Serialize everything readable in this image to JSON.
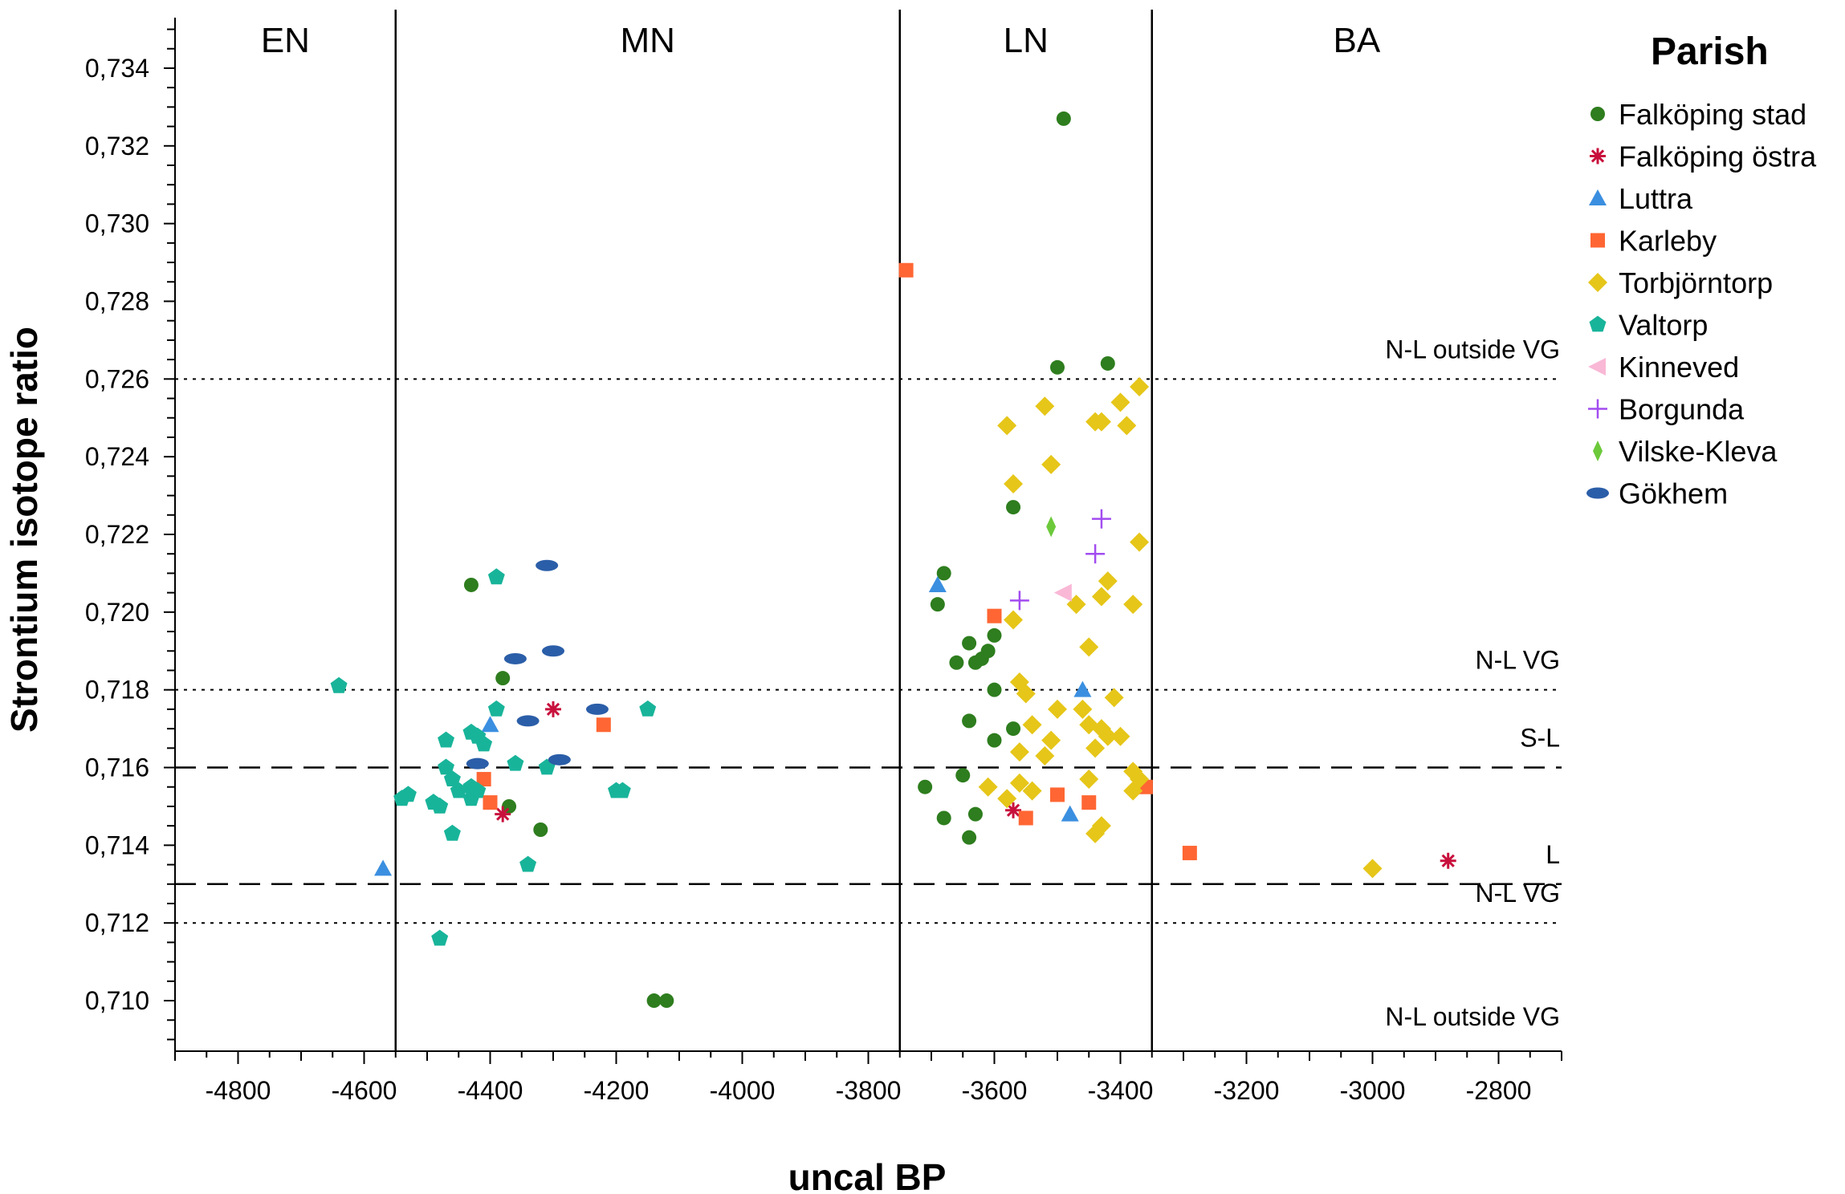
{
  "chart_data": {
    "type": "scatter",
    "xlabel": "uncal BP",
    "ylabel": "Strontium isotope ratio",
    "xlim": [
      -4900,
      -2700
    ],
    "ylim": [
      0.7087,
      0.7353
    ],
    "x_ticks": [
      -4800,
      -4600,
      -4400,
      -4200,
      -4000,
      -3800,
      -3600,
      -3400,
      -3200,
      -3000,
      -2800
    ],
    "y_ticks": [
      0.71,
      0.712,
      0.714,
      0.716,
      0.718,
      0.72,
      0.722,
      0.724,
      0.726,
      0.728,
      0.73,
      0.732,
      0.734
    ],
    "x_tick_labels": [
      "-4800",
      "-4600",
      "-4400",
      "-4200",
      "-4000",
      "-3800",
      "-3600",
      "-3400",
      "-3200",
      "-3000",
      "-2800"
    ],
    "y_tick_labels": [
      "0,710",
      "0,712",
      "0,714",
      "0,716",
      "0,718",
      "0,720",
      "0,722",
      "0,724",
      "0,726",
      "0,728",
      "0,730",
      "0,732",
      "0,734"
    ],
    "periods": [
      {
        "label": "EN",
        "from": -4900,
        "to": -4550
      },
      {
        "label": "MN",
        "from": -4550,
        "to": -3750
      },
      {
        "label": "LN",
        "from": -3750,
        "to": -3350
      },
      {
        "label": "BA",
        "from": -3350,
        "to": -2700
      }
    ],
    "period_boundaries": [
      -4550,
      -3750,
      -3350
    ],
    "reference_lines": [
      {
        "y": 0.726,
        "style": "dotted",
        "label": "N-L outside VG",
        "label_pos": "above"
      },
      {
        "y": 0.718,
        "style": "dotted",
        "label": "N-L VG",
        "label_pos": "above"
      },
      {
        "y": 0.716,
        "style": "dashed",
        "label": "S-L",
        "label_pos": "above"
      },
      {
        "y": 0.713,
        "style": "dashed",
        "label": "L",
        "label_pos": "above"
      },
      {
        "y": 0.712,
        "style": "dotted",
        "label": "N-L VG",
        "label_pos": "above"
      },
      {
        "y": 0.712,
        "style": "none",
        "label": "N-L outside VG",
        "label_pos": "below"
      }
    ],
    "legend": {
      "title": "Parish",
      "position": "right"
    },
    "series": [
      {
        "name": "Falköping stad",
        "marker": "circle",
        "color": "#2e7d1e",
        "points": [
          [
            -4430,
            0.7207
          ],
          [
            -4380,
            0.7183
          ],
          [
            -4370,
            0.715
          ],
          [
            -4320,
            0.7144
          ],
          [
            -4140,
            0.71
          ],
          [
            -4120,
            0.71
          ],
          [
            -3490,
            0.7327
          ],
          [
            -3500,
            0.7263
          ],
          [
            -3420,
            0.7264
          ],
          [
            -3570,
            0.7227
          ],
          [
            -3680,
            0.721
          ],
          [
            -3690,
            0.7202
          ],
          [
            -3640,
            0.7192
          ],
          [
            -3600,
            0.7194
          ],
          [
            -3610,
            0.719
          ],
          [
            -3620,
            0.7188
          ],
          [
            -3660,
            0.7187
          ],
          [
            -3630,
            0.7187
          ],
          [
            -3600,
            0.718
          ],
          [
            -3640,
            0.7172
          ],
          [
            -3570,
            0.717
          ],
          [
            -3600,
            0.7167
          ],
          [
            -3650,
            0.7158
          ],
          [
            -3710,
            0.7155
          ],
          [
            -3680,
            0.7147
          ],
          [
            -3630,
            0.7148
          ],
          [
            -3640,
            0.7142
          ]
        ]
      },
      {
        "name": "Falköping östra",
        "marker": "asterisk",
        "color": "#c8103c",
        "points": [
          [
            -4300,
            0.7175
          ],
          [
            -4380,
            0.7148
          ],
          [
            -3570,
            0.7149
          ],
          [
            -2880,
            0.7136
          ]
        ]
      },
      {
        "name": "Luttra",
        "marker": "triangle-up",
        "color": "#3b8fe0",
        "points": [
          [
            -4570,
            0.7134
          ],
          [
            -4400,
            0.7171
          ],
          [
            -3690,
            0.7207
          ],
          [
            -3460,
            0.718
          ],
          [
            -3480,
            0.7148
          ]
        ]
      },
      {
        "name": "Karleby",
        "marker": "square",
        "color": "#ff6633",
        "points": [
          [
            -3740,
            0.7288
          ],
          [
            -4410,
            0.7157
          ],
          [
            -4400,
            0.7151
          ],
          [
            -4220,
            0.7171
          ],
          [
            -3600,
            0.7199
          ],
          [
            -3500,
            0.7153
          ],
          [
            -3550,
            0.7147
          ],
          [
            -3450,
            0.7151
          ],
          [
            -3360,
            0.7155
          ],
          [
            -3290,
            0.7138
          ]
        ]
      },
      {
        "name": "Torbjörntorp",
        "marker": "diamond",
        "color": "#e6c619",
        "points": [
          [
            -3370,
            0.7258
          ],
          [
            -3520,
            0.7253
          ],
          [
            -3580,
            0.7248
          ],
          [
            -3440,
            0.7249
          ],
          [
            -3430,
            0.7249
          ],
          [
            -3400,
            0.7254
          ],
          [
            -3390,
            0.7248
          ],
          [
            -3510,
            0.7238
          ],
          [
            -3570,
            0.7233
          ],
          [
            -3370,
            0.7218
          ],
          [
            -3420,
            0.7208
          ],
          [
            -3430,
            0.7204
          ],
          [
            -3470,
            0.7202
          ],
          [
            -3380,
            0.7202
          ],
          [
            -3570,
            0.7198
          ],
          [
            -3450,
            0.7191
          ],
          [
            -3560,
            0.7182
          ],
          [
            -3550,
            0.7179
          ],
          [
            -3410,
            0.7178
          ],
          [
            -3500,
            0.7175
          ],
          [
            -3460,
            0.7175
          ],
          [
            -3450,
            0.7171
          ],
          [
            -3540,
            0.7171
          ],
          [
            -3430,
            0.717
          ],
          [
            -3420,
            0.7168
          ],
          [
            -3400,
            0.7168
          ],
          [
            -3510,
            0.7167
          ],
          [
            -3440,
            0.7165
          ],
          [
            -3520,
            0.7163
          ],
          [
            -3560,
            0.7164
          ],
          [
            -3380,
            0.7159
          ],
          [
            -3370,
            0.7157
          ],
          [
            -3450,
            0.7157
          ],
          [
            -3560,
            0.7156
          ],
          [
            -3610,
            0.7155
          ],
          [
            -3540,
            0.7154
          ],
          [
            -3580,
            0.7152
          ],
          [
            -3380,
            0.7154
          ],
          [
            -3430,
            0.7145
          ],
          [
            -3440,
            0.7143
          ],
          [
            -3000,
            0.7134
          ]
        ]
      },
      {
        "name": "Valtorp",
        "marker": "pentagon",
        "color": "#18b49a",
        "points": [
          [
            -4640,
            0.7181
          ],
          [
            -4390,
            0.7209
          ],
          [
            -4390,
            0.7175
          ],
          [
            -4150,
            0.7175
          ],
          [
            -4470,
            0.7167
          ],
          [
            -4430,
            0.7169
          ],
          [
            -4420,
            0.7168
          ],
          [
            -4410,
            0.7166
          ],
          [
            -4470,
            0.716
          ],
          [
            -4360,
            0.7161
          ],
          [
            -4310,
            0.716
          ],
          [
            -4460,
            0.7157
          ],
          [
            -4430,
            0.7155
          ],
          [
            -4420,
            0.7154
          ],
          [
            -4450,
            0.7154
          ],
          [
            -4430,
            0.7152
          ],
          [
            -4200,
            0.7154
          ],
          [
            -4190,
            0.7154
          ],
          [
            -4530,
            0.7153
          ],
          [
            -4540,
            0.7152
          ],
          [
            -4490,
            0.7151
          ],
          [
            -4480,
            0.715
          ],
          [
            -4460,
            0.7143
          ],
          [
            -4340,
            0.7135
          ],
          [
            -4480,
            0.7116
          ]
        ]
      },
      {
        "name": "Kinneved",
        "marker": "triangle-left",
        "color": "#f9b8d6",
        "points": [
          [
            -3490,
            0.7205
          ]
        ]
      },
      {
        "name": "Borgunda",
        "marker": "plus",
        "color": "#a24cf0",
        "points": [
          [
            -3430,
            0.7224
          ],
          [
            -3440,
            0.7215
          ],
          [
            -3560,
            0.7203
          ]
        ]
      },
      {
        "name": "Vilske-Kleva",
        "marker": "thin-diamond",
        "color": "#6cc93a",
        "points": [
          [
            -3510,
            0.7222
          ]
        ]
      },
      {
        "name": "Gökhem",
        "marker": "ellipse",
        "color": "#2b5ea8",
        "points": [
          [
            -4310,
            0.7212
          ],
          [
            -4360,
            0.7188
          ],
          [
            -4300,
            0.719
          ],
          [
            -4230,
            0.7175
          ],
          [
            -4340,
            0.7172
          ],
          [
            -4290,
            0.7162
          ],
          [
            -4420,
            0.7161
          ]
        ]
      }
    ]
  }
}
